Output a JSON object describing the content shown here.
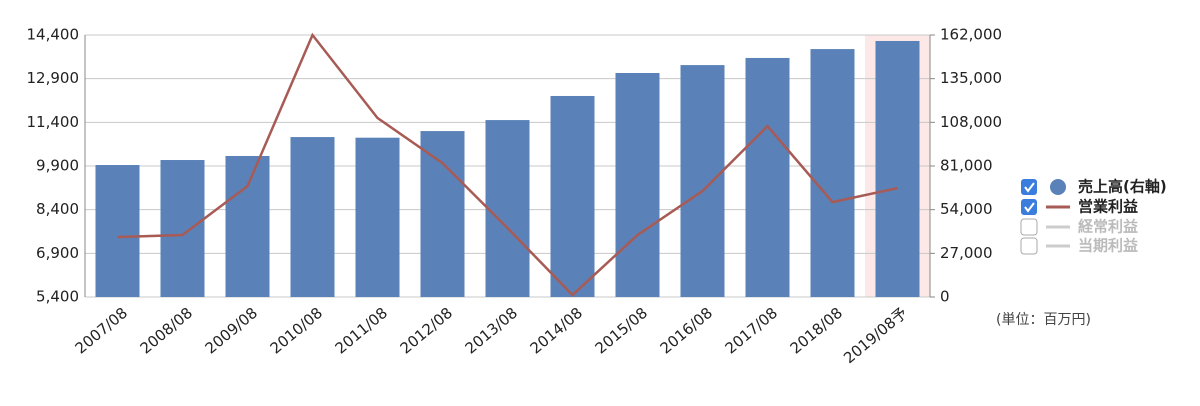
{
  "chart_data": {
    "type": "bar_line",
    "categories": [
      "2007/08",
      "2008/08",
      "2009/08",
      "2010/08",
      "2011/08",
      "2012/08",
      "2013/08",
      "2014/08",
      "2015/08",
      "2016/08",
      "2017/08",
      "2018/08",
      "2019/08予"
    ],
    "series": [
      {
        "name": "売上高(右軸)",
        "color": "#5a82b8",
        "type": "bar",
        "axis": "y2",
        "values": [
          81600,
          84700,
          87200,
          98900,
          98500,
          102600,
          109400,
          124300,
          138500,
          143400,
          147800,
          153300,
          158300
        ]
      },
      {
        "name": "営業利益",
        "color": "#a85a55",
        "type": "line",
        "axis": "y",
        "values": [
          7460,
          7530,
          9210,
          14400,
          11550,
          10000,
          7770,
          5470,
          7530,
          9040,
          11270,
          8660,
          9140
        ]
      }
    ],
    "inactive_series": [
      "経常利益",
      "当期利益"
    ],
    "highlight_index": 12,
    "highlight_color": "#fde8e8",
    "ylim": [
      5400,
      14400
    ],
    "yticks": [
      {
        "value": 5400,
        "label": "5,400"
      },
      {
        "value": 6900,
        "label": "6,900"
      },
      {
        "value": 8400,
        "label": "8,400"
      },
      {
        "value": 9900,
        "label": "9,900"
      },
      {
        "value": 11400,
        "label": "11,400"
      },
      {
        "value": 12900,
        "label": "12,900"
      },
      {
        "value": 14400,
        "label": "14,400"
      }
    ],
    "y2lim": [
      0,
      162000
    ],
    "y2ticks": [
      0,
      {
        "value": 27000,
        "label": "27,000"
      },
      {
        "value": 54000,
        "label": "54,000"
      },
      {
        "value": 81000,
        "label": "81,000"
      },
      {
        "value": 108000,
        "label": "108,000"
      },
      {
        "value": 135000,
        "label": "135,000"
      },
      {
        "value": 162000,
        "label": "162,000"
      }
    ],
    "grid": true,
    "unit_note": "(単位：百万円)"
  }
}
